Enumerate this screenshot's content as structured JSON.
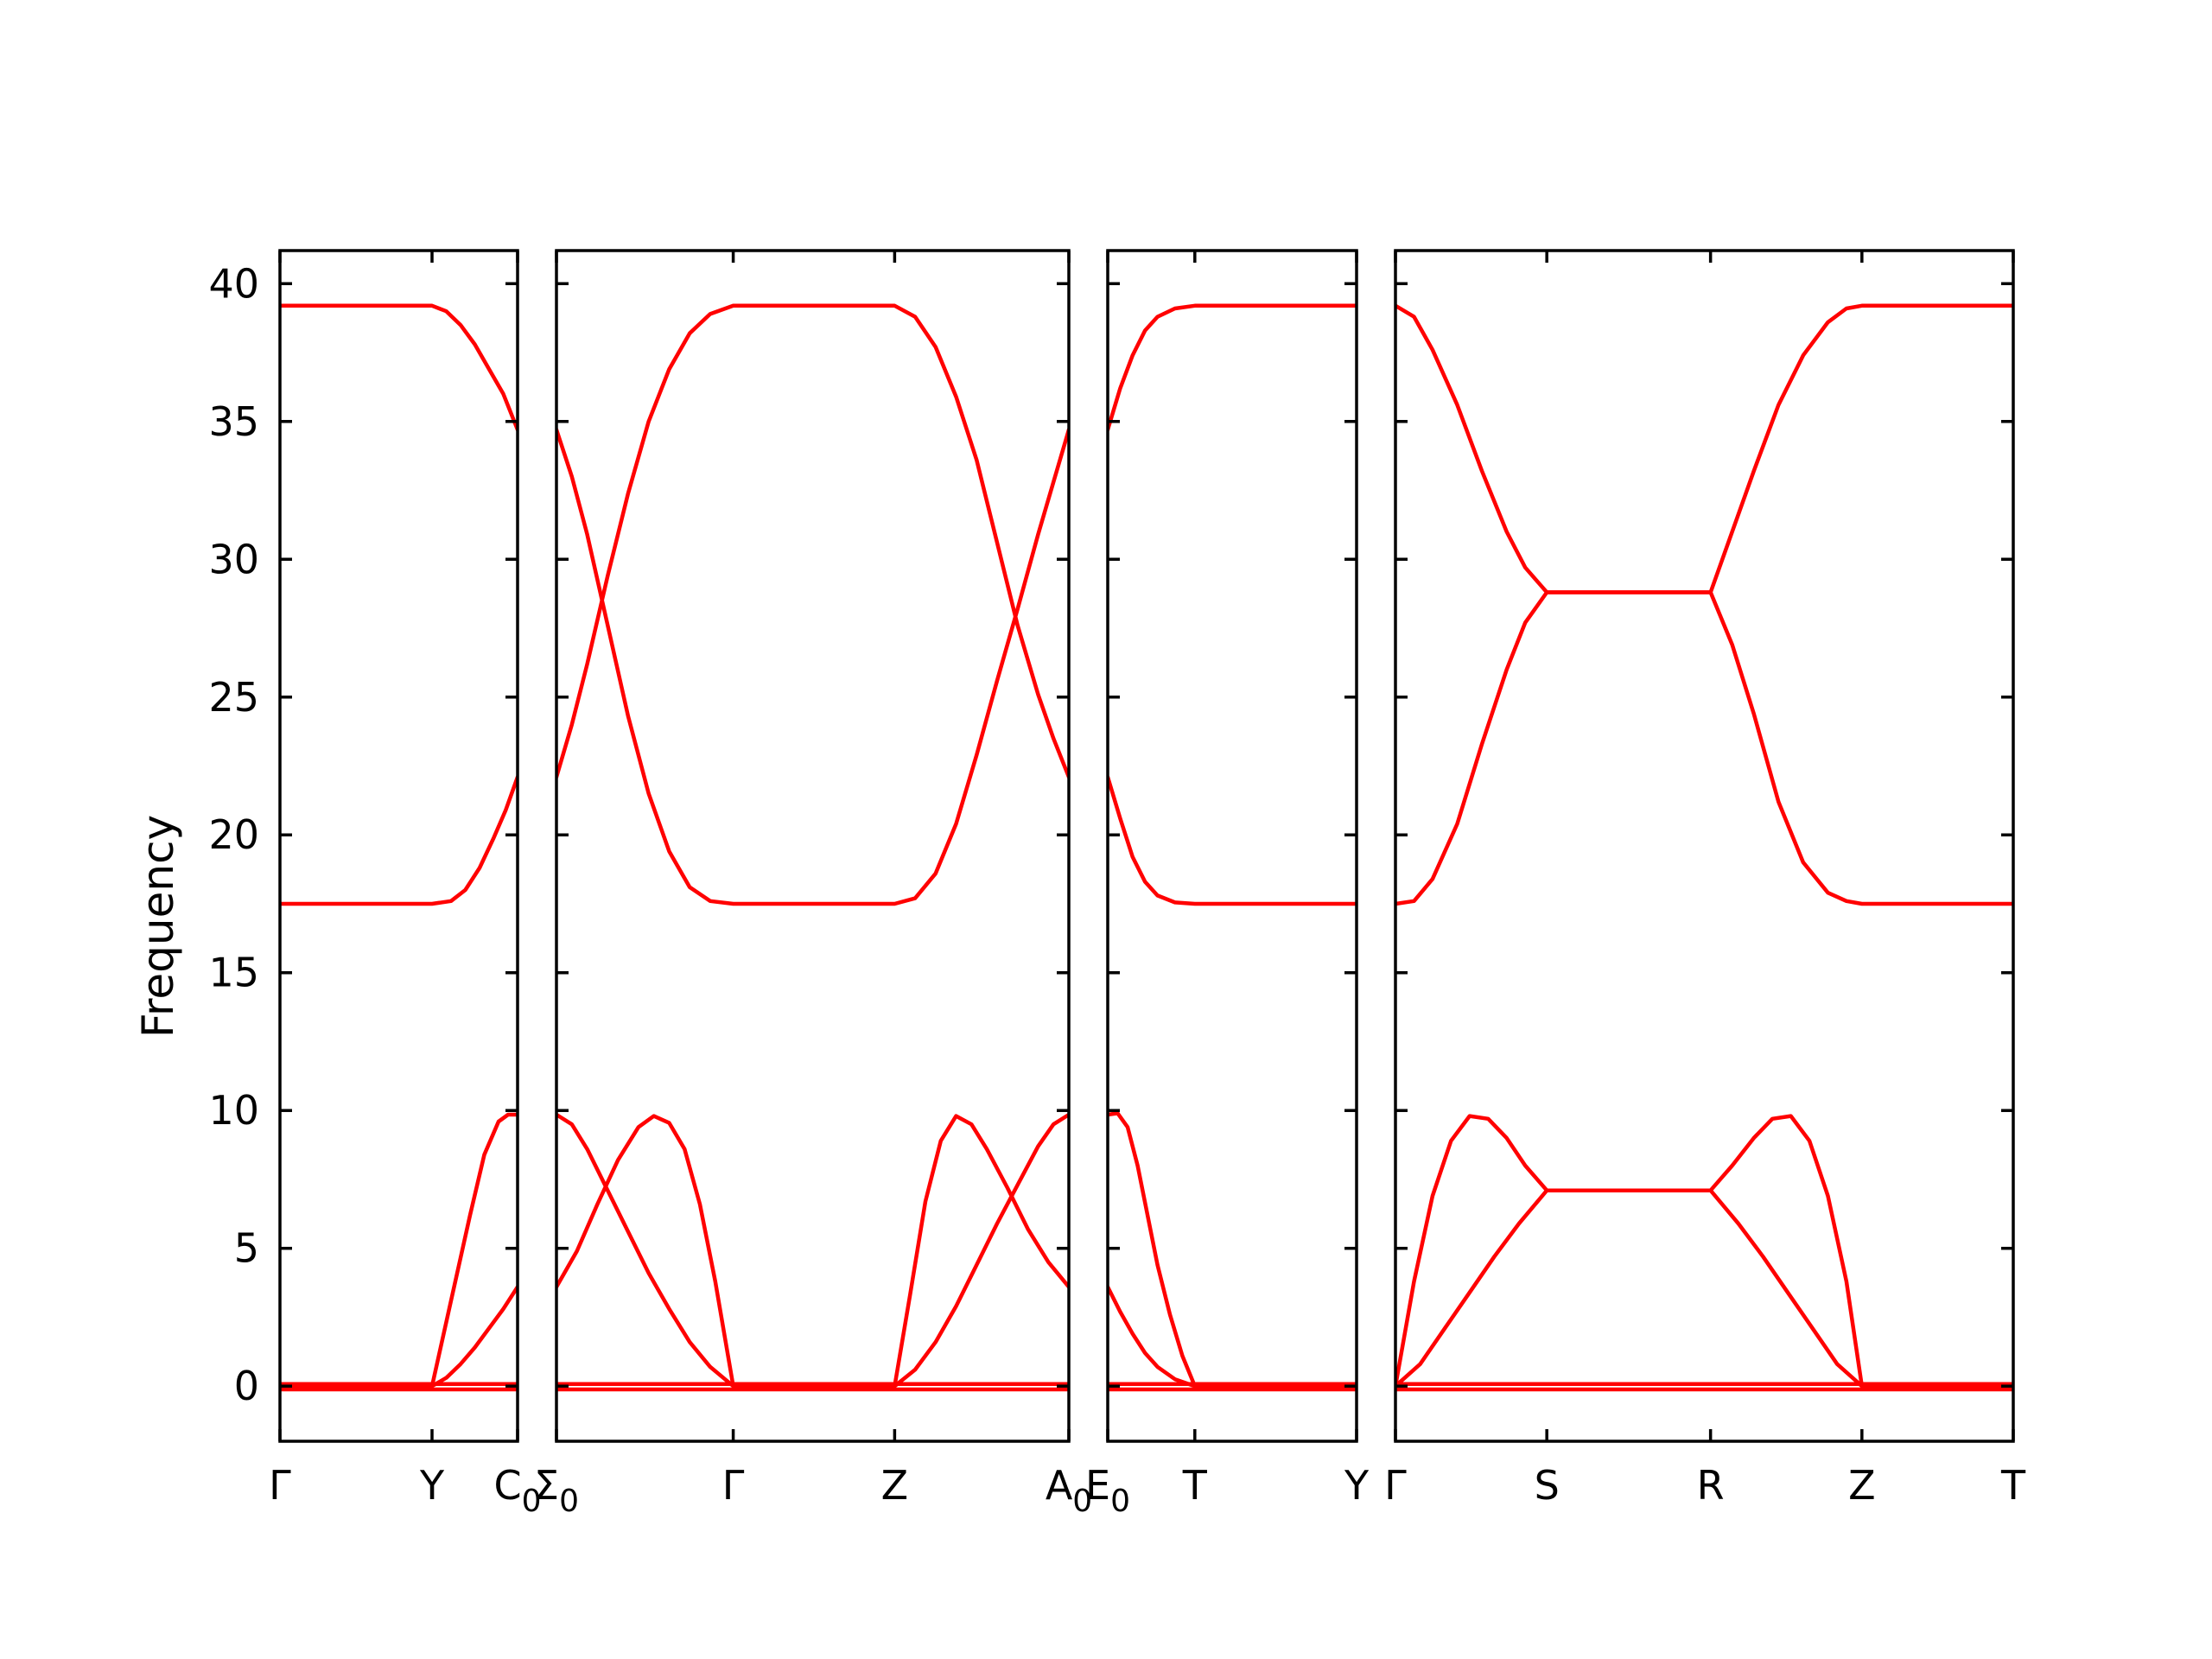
{
  "chart_data": {
    "type": "line",
    "ylabel": "Frequency",
    "ylim": [
      -2,
      41.2
    ],
    "yticks": [
      0,
      5,
      10,
      15,
      20,
      25,
      30,
      35,
      40
    ],
    "ytick_labels": [
      "0",
      "5",
      "10",
      "15",
      "20",
      "25",
      "30",
      "35",
      "40"
    ],
    "band_color": "#ff0000",
    "panels": [
      {
        "name": "panel-1",
        "x_range": [
          0,
          1
        ],
        "ticks": [
          {
            "x": 0,
            "label": "Γ"
          },
          {
            "x": 0.64,
            "label": "Y"
          },
          {
            "x": 1,
            "label": "C",
            "sub": "0"
          }
        ],
        "bands": [
          [
            [
              0,
              39.2
            ],
            [
              0.64,
              39.2
            ],
            [
              0.7,
              39.0
            ],
            [
              0.76,
              38.5
            ],
            [
              0.82,
              37.8
            ],
            [
              0.88,
              36.9
            ],
            [
              0.94,
              36.0
            ],
            [
              1,
              34.7
            ]
          ],
          [
            [
              0,
              17.5
            ],
            [
              0.64,
              17.5
            ],
            [
              0.72,
              17.6
            ],
            [
              0.78,
              18.0
            ],
            [
              0.84,
              18.8
            ],
            [
              0.9,
              19.9
            ],
            [
              0.95,
              20.9
            ],
            [
              1,
              22.1
            ]
          ],
          [
            [
              0,
              0
            ],
            [
              0.64,
              0
            ],
            [
              0.72,
              3.1
            ],
            [
              0.8,
              6.2
            ],
            [
              0.86,
              8.4
            ],
            [
              0.92,
              9.6
            ],
            [
              0.96,
              9.85
            ],
            [
              1,
              9.85
            ]
          ],
          [
            [
              0,
              0
            ],
            [
              0.64,
              0
            ],
            [
              0.7,
              0.3
            ],
            [
              0.76,
              0.8
            ],
            [
              0.82,
              1.4
            ],
            [
              0.88,
              2.1
            ],
            [
              0.94,
              2.8
            ],
            [
              1,
              3.6
            ]
          ],
          [
            [
              0,
              -0.12
            ],
            [
              1,
              -0.12
            ]
          ],
          [
            [
              0,
              0.08
            ],
            [
              1,
              0.08
            ]
          ]
        ]
      },
      {
        "name": "panel-2",
        "x_range": [
          0,
          1
        ],
        "ticks": [
          {
            "x": 0,
            "label": "Σ",
            "sub": "0"
          },
          {
            "x": 0.345,
            "label": "Γ"
          },
          {
            "x": 0.66,
            "label": "Z"
          },
          {
            "x": 1,
            "label": "A",
            "sub": "0"
          }
        ],
        "bands": [
          [
            [
              0,
              34.7
            ],
            [
              0.03,
              33.0
            ],
            [
              0.06,
              30.9
            ],
            [
              0.1,
              27.6
            ],
            [
              0.14,
              24.3
            ],
            [
              0.18,
              21.5
            ],
            [
              0.22,
              19.4
            ],
            [
              0.26,
              18.1
            ],
            [
              0.3,
              17.6
            ],
            [
              0.345,
              17.5
            ],
            [
              0.66,
              17.5
            ],
            [
              0.7,
              17.7
            ],
            [
              0.74,
              18.6
            ],
            [
              0.78,
              20.4
            ],
            [
              0.82,
              22.9
            ],
            [
              0.86,
              25.6
            ],
            [
              0.9,
              28.2
            ],
            [
              0.94,
              30.9
            ],
            [
              0.97,
              32.8
            ],
            [
              1,
              34.7
            ]
          ],
          [
            [
              0,
              22.1
            ],
            [
              0.03,
              24.0
            ],
            [
              0.06,
              26.2
            ],
            [
              0.1,
              29.4
            ],
            [
              0.14,
              32.4
            ],
            [
              0.18,
              35.0
            ],
            [
              0.22,
              36.9
            ],
            [
              0.26,
              38.2
            ],
            [
              0.3,
              38.9
            ],
            [
              0.345,
              39.2
            ],
            [
              0.66,
              39.2
            ],
            [
              0.7,
              38.8
            ],
            [
              0.74,
              37.7
            ],
            [
              0.78,
              35.9
            ],
            [
              0.82,
              33.6
            ],
            [
              0.86,
              30.6
            ],
            [
              0.9,
              27.6
            ],
            [
              0.94,
              25.1
            ],
            [
              0.97,
              23.5
            ],
            [
              1,
              22.1
            ]
          ],
          [
            [
              0,
              3.6
            ],
            [
              0.04,
              4.9
            ],
            [
              0.08,
              6.6
            ],
            [
              0.12,
              8.2
            ],
            [
              0.16,
              9.4
            ],
            [
              0.19,
              9.8
            ],
            [
              0.22,
              9.55
            ],
            [
              0.25,
              8.6
            ],
            [
              0.28,
              6.6
            ],
            [
              0.31,
              3.8
            ],
            [
              0.345,
              0.0
            ],
            [
              0.66,
              0.0
            ],
            [
              0.69,
              3.3
            ],
            [
              0.72,
              6.7
            ],
            [
              0.75,
              8.9
            ],
            [
              0.78,
              9.8
            ],
            [
              0.81,
              9.5
            ],
            [
              0.84,
              8.6
            ],
            [
              0.88,
              7.2
            ],
            [
              0.92,
              5.7
            ],
            [
              0.96,
              4.5
            ],
            [
              1,
              3.6
            ]
          ],
          [
            [
              0,
              9.85
            ],
            [
              0.03,
              9.5
            ],
            [
              0.06,
              8.6
            ],
            [
              0.1,
              7.1
            ],
            [
              0.14,
              5.6
            ],
            [
              0.18,
              4.1
            ],
            [
              0.22,
              2.8
            ],
            [
              0.26,
              1.6
            ],
            [
              0.3,
              0.7
            ],
            [
              0.345,
              0.0
            ],
            [
              0.66,
              0.0
            ],
            [
              0.7,
              0.6
            ],
            [
              0.74,
              1.6
            ],
            [
              0.78,
              2.9
            ],
            [
              0.82,
              4.4
            ],
            [
              0.86,
              5.9
            ],
            [
              0.9,
              7.3
            ],
            [
              0.94,
              8.7
            ],
            [
              0.97,
              9.5
            ],
            [
              1,
              9.85
            ]
          ],
          [
            [
              0,
              -0.12
            ],
            [
              1,
              -0.12
            ]
          ],
          [
            [
              0,
              0.08
            ],
            [
              1,
              0.08
            ]
          ]
        ]
      },
      {
        "name": "panel-3",
        "x_range": [
          0,
          1
        ],
        "ticks": [
          {
            "x": 0,
            "label": "E",
            "sub": "0"
          },
          {
            "x": 0.35,
            "label": "T"
          },
          {
            "x": 1,
            "label": "Y"
          }
        ],
        "bands": [
          [
            [
              0,
              34.7
            ],
            [
              0.05,
              36.2
            ],
            [
              0.1,
              37.4
            ],
            [
              0.15,
              38.3
            ],
            [
              0.2,
              38.8
            ],
            [
              0.27,
              39.1
            ],
            [
              0.35,
              39.2
            ],
            [
              1,
              39.2
            ]
          ],
          [
            [
              0,
              22.1
            ],
            [
              0.05,
              20.6
            ],
            [
              0.1,
              19.2
            ],
            [
              0.15,
              18.3
            ],
            [
              0.2,
              17.8
            ],
            [
              0.27,
              17.55
            ],
            [
              0.35,
              17.5
            ],
            [
              1,
              17.5
            ]
          ],
          [
            [
              0,
              9.85
            ],
            [
              0.04,
              9.9
            ],
            [
              0.08,
              9.4
            ],
            [
              0.12,
              8.0
            ],
            [
              0.16,
              6.2
            ],
            [
              0.2,
              4.4
            ],
            [
              0.25,
              2.6
            ],
            [
              0.3,
              1.1
            ],
            [
              0.35,
              0.0
            ],
            [
              1,
              0.0
            ]
          ],
          [
            [
              0,
              3.6
            ],
            [
              0.05,
              2.7
            ],
            [
              0.1,
              1.9
            ],
            [
              0.15,
              1.2
            ],
            [
              0.2,
              0.7
            ],
            [
              0.27,
              0.25
            ],
            [
              0.35,
              0.0
            ],
            [
              1,
              0.0
            ]
          ],
          [
            [
              0,
              -0.12
            ],
            [
              1,
              -0.12
            ]
          ],
          [
            [
              0,
              0.08
            ],
            [
              1,
              0.08
            ]
          ]
        ]
      },
      {
        "name": "panel-4",
        "x_range": [
          0,
          1
        ],
        "ticks": [
          {
            "x": 0,
            "label": "Γ"
          },
          {
            "x": 0.245,
            "label": "S"
          },
          {
            "x": 0.51,
            "label": "R"
          },
          {
            "x": 0.755,
            "label": "Z"
          },
          {
            "x": 1,
            "label": "T"
          }
        ],
        "bands": [
          [
            [
              0,
              39.2
            ],
            [
              0.03,
              38.8
            ],
            [
              0.06,
              37.6
            ],
            [
              0.1,
              35.6
            ],
            [
              0.14,
              33.2
            ],
            [
              0.18,
              31.0
            ],
            [
              0.21,
              29.7
            ],
            [
              0.245,
              28.8
            ],
            [
              0.51,
              28.8
            ],
            [
              0.545,
              26.9
            ],
            [
              0.58,
              24.4
            ],
            [
              0.62,
              21.2
            ],
            [
              0.66,
              19.0
            ],
            [
              0.7,
              17.9
            ],
            [
              0.73,
              17.6
            ],
            [
              0.755,
              17.5
            ],
            [
              1,
              17.5
            ]
          ],
          [
            [
              0,
              17.5
            ],
            [
              0.03,
              17.6
            ],
            [
              0.06,
              18.4
            ],
            [
              0.1,
              20.4
            ],
            [
              0.14,
              23.3
            ],
            [
              0.18,
              26.0
            ],
            [
              0.21,
              27.7
            ],
            [
              0.245,
              28.8
            ],
            [
              0.51,
              28.8
            ],
            [
              0.545,
              31.0
            ],
            [
              0.58,
              33.2
            ],
            [
              0.62,
              35.6
            ],
            [
              0.66,
              37.4
            ],
            [
              0.7,
              38.6
            ],
            [
              0.73,
              39.1
            ],
            [
              0.755,
              39.2
            ],
            [
              1,
              39.2
            ]
          ],
          [
            [
              0,
              0.0
            ],
            [
              0.03,
              3.8
            ],
            [
              0.06,
              6.9
            ],
            [
              0.09,
              8.9
            ],
            [
              0.12,
              9.8
            ],
            [
              0.15,
              9.7
            ],
            [
              0.18,
              9.0
            ],
            [
              0.21,
              8.0
            ],
            [
              0.245,
              7.1
            ],
            [
              0.51,
              7.1
            ],
            [
              0.545,
              8.0
            ],
            [
              0.58,
              9.0
            ],
            [
              0.61,
              9.7
            ],
            [
              0.64,
              9.8
            ],
            [
              0.67,
              8.9
            ],
            [
              0.7,
              6.9
            ],
            [
              0.73,
              3.8
            ],
            [
              0.755,
              0.0
            ],
            [
              1,
              0.0
            ]
          ],
          [
            [
              0,
              0.0
            ],
            [
              0.04,
              0.8
            ],
            [
              0.08,
              2.1
            ],
            [
              0.12,
              3.4
            ],
            [
              0.16,
              4.7
            ],
            [
              0.2,
              5.9
            ],
            [
              0.245,
              7.1
            ],
            [
              0.51,
              7.1
            ],
            [
              0.555,
              5.9
            ],
            [
              0.595,
              4.7
            ],
            [
              0.635,
              3.4
            ],
            [
              0.675,
              2.1
            ],
            [
              0.715,
              0.8
            ],
            [
              0.755,
              0.0
            ],
            [
              1,
              0.0
            ]
          ],
          [
            [
              0,
              -0.12
            ],
            [
              1,
              -0.12
            ]
          ],
          [
            [
              0,
              0.08
            ],
            [
              1,
              0.08
            ]
          ]
        ]
      }
    ]
  }
}
